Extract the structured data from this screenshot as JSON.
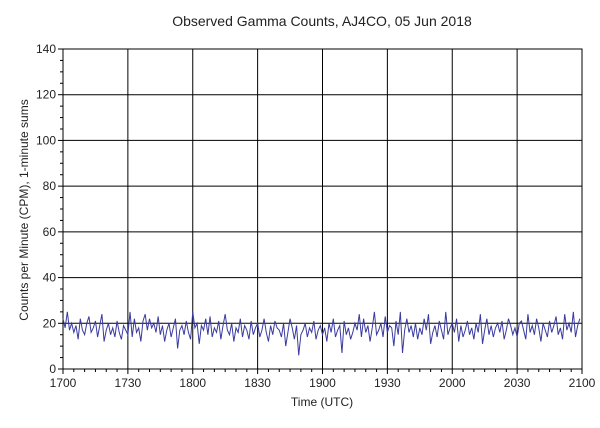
{
  "chart_data": {
    "type": "line",
    "title": "Observed Gamma Counts, AJ4CO, 05 Jun 2018",
    "xlabel": "Time (UTC)",
    "ylabel": "Counts per Minute (CPM), 1-minute sums",
    "x_ticks": [
      "1700",
      "1730",
      "1800",
      "1830",
      "1900",
      "1930",
      "2000",
      "2030",
      "2100"
    ],
    "x_range_minutes": [
      0,
      240
    ],
    "y_ticks": [
      0,
      20,
      40,
      60,
      80,
      100,
      120,
      140
    ],
    "ylim": [
      0,
      140
    ],
    "grid": true,
    "line_color": "#3a3aa0",
    "series": [
      {
        "x_start_minute": 0,
        "x_step_minutes": 1,
        "values": [
          22,
          18,
          25,
          17,
          20,
          16,
          19,
          13,
          22,
          17,
          15,
          20,
          23,
          16,
          18,
          21,
          14,
          19,
          24,
          12,
          17,
          20,
          15,
          18,
          14,
          21,
          16,
          13,
          19,
          17,
          15,
          25,
          14,
          22,
          16,
          18,
          12,
          21,
          24,
          17,
          22,
          18,
          20,
          16,
          23,
          15,
          19,
          12,
          17,
          20,
          14,
          18,
          22,
          9,
          17,
          19,
          15,
          21,
          16,
          13,
          25,
          18,
          20,
          11,
          19,
          17,
          22,
          15,
          23,
          14,
          18,
          16,
          21,
          13,
          19,
          24,
          17,
          15,
          20,
          12,
          18,
          16,
          22,
          14,
          19,
          17,
          13,
          21,
          15,
          18,
          20,
          14,
          17,
          22,
          16,
          12,
          19,
          15,
          21,
          18,
          17,
          14,
          20,
          10,
          16,
          22,
          18,
          13,
          19,
          6,
          15,
          17,
          20,
          14,
          18,
          16,
          21,
          13,
          17,
          19,
          15,
          18,
          12,
          20,
          16,
          22,
          14,
          17,
          19,
          7,
          21,
          15,
          18,
          13,
          16,
          20,
          17,
          24,
          14,
          22,
          16,
          19,
          12,
          18,
          25,
          15,
          17,
          20,
          14,
          23,
          16,
          19,
          18,
          10,
          21,
          15,
          25,
          7,
          17,
          22,
          16,
          19,
          14,
          20,
          13,
          18,
          15,
          22,
          17,
          24,
          11,
          16,
          19,
          14,
          21,
          17,
          13,
          25,
          15,
          18,
          20,
          16,
          22,
          12,
          19,
          14,
          17,
          21,
          15,
          18,
          13,
          20,
          16,
          24,
          11,
          17,
          22,
          15,
          19,
          14,
          18,
          20,
          16,
          21,
          13,
          17,
          22,
          19,
          15,
          18,
          14,
          20,
          21,
          17,
          13,
          24,
          16,
          19,
          15,
          22,
          18,
          12,
          20,
          17,
          14,
          21,
          16,
          19,
          23,
          15,
          18,
          13,
          24,
          17,
          20,
          16,
          25,
          14,
          19,
          22
        ]
      }
    ]
  }
}
